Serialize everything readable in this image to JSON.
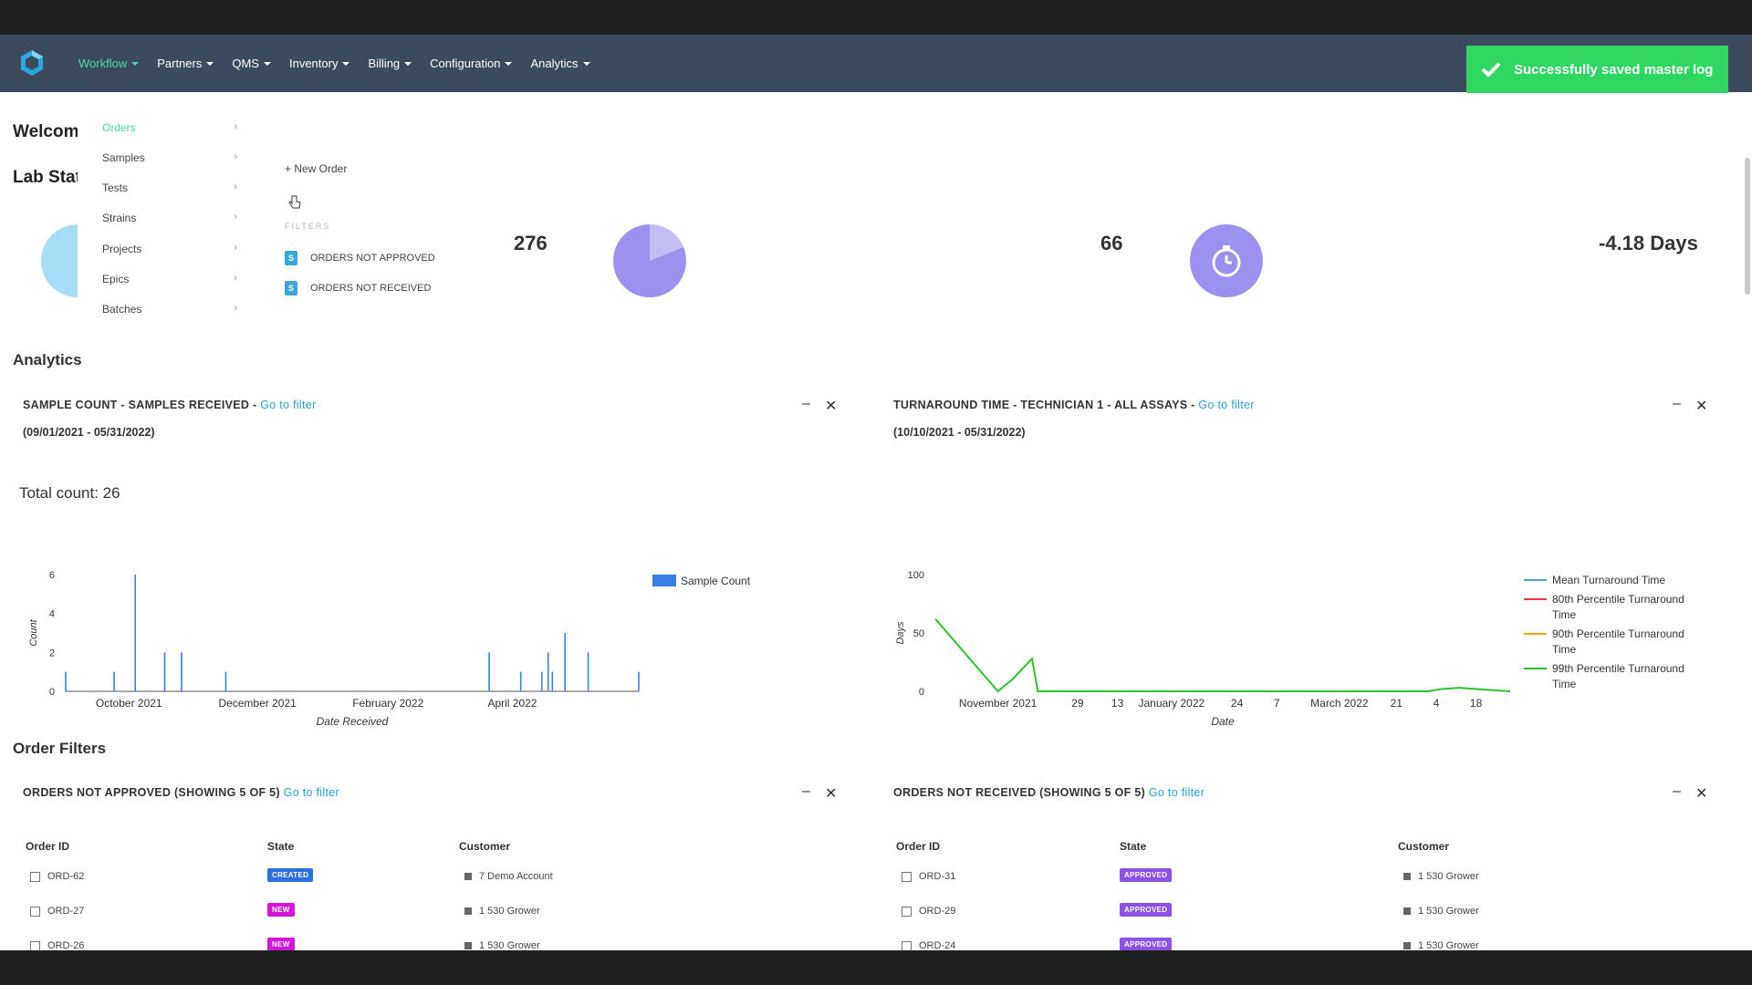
{
  "nav": {
    "items": [
      "Workflow",
      "Partners",
      "QMS",
      "Inventory",
      "Billing",
      "Configuration",
      "Analytics"
    ]
  },
  "toast": {
    "message": "Successfully saved master log"
  },
  "welcome": "Welcome",
  "lab_stats": "Lab Stats",
  "workflow_menu": {
    "items": [
      "Orders",
      "Samples",
      "Tests",
      "Strains",
      "Projects",
      "Epics",
      "Batches"
    ],
    "active": "Orders"
  },
  "orders_submenu": {
    "new_order": "+ New Order",
    "filters_label": "FILTERS",
    "filters": [
      "ORDERS NOT APPROVED",
      "ORDERS NOT RECEIVED"
    ],
    "filter_badge": "S"
  },
  "stats": {
    "value_1": "276",
    "value_2": "66",
    "value_3": "-4.18 Days"
  },
  "analytics": {
    "heading": "Analytics",
    "card1": {
      "title": "SAMPLE COUNT - SAMPLES RECEIVED - ",
      "link": "Go to filter",
      "range": "(09/01/2021 - 05/31/2022)",
      "total": "Total count: 26"
    },
    "card2": {
      "title": "TURNAROUND TIME - TECHNICIAN 1 - ALL ASSAYS - ",
      "link": "Go to filter",
      "range": "(10/10/2021 - 05/31/2022)"
    },
    "minimize": "–",
    "close": "✕"
  },
  "chart_data": [
    {
      "type": "bar",
      "xlabel": "Date Received",
      "ylabel": "Count",
      "ylim": [
        0,
        6
      ],
      "yticks": [
        0,
        2,
        4,
        6
      ],
      "xticks": [
        "October 2021",
        "December 2021",
        "February 2022",
        "April 2022"
      ],
      "legend": "top-right",
      "series": [
        {
          "name": "Sample Count",
          "color": "#3a7ee8",
          "x": [
            "2021-09-01",
            "2021-09-24",
            "2021-10-04",
            "2021-10-18",
            "2021-10-26",
            "2021-11-16",
            "2022-03-21",
            "2022-04-05",
            "2022-04-15",
            "2022-04-18",
            "2022-04-20",
            "2022-04-26",
            "2022-05-07",
            "2022-05-31"
          ],
          "values": [
            1,
            1,
            6,
            2,
            2,
            1,
            2,
            1,
            1,
            2,
            1,
            3,
            2,
            1
          ]
        }
      ]
    },
    {
      "type": "line",
      "xlabel": "Date",
      "ylabel": "Days",
      "ylim": [
        0,
        100
      ],
      "yticks": [
        0,
        50,
        100
      ],
      "xticks": [
        "November 2021",
        "29",
        "13",
        "January 2022",
        "24",
        "7",
        "March 2022",
        "21",
        "4",
        "18"
      ],
      "legend": "right",
      "series": [
        {
          "name": "Mean Turnaround Time",
          "color": "#4aa3e6",
          "x": [],
          "y": []
        },
        {
          "name": "80th Percentile Turnaround Time",
          "color": "#e63a3a",
          "x": [],
          "y": []
        },
        {
          "name": "90th Percentile Turnaround Time",
          "color": "#f2a818",
          "x": [],
          "y": []
        },
        {
          "name": "99th Percentile Turnaround Time",
          "color": "#2fc22f",
          "x": [
            "2021-10-10",
            "2021-11-01",
            "2021-11-06",
            "2021-11-13",
            "2021-11-15",
            "2022-01-01",
            "2022-03-01",
            "2022-04-01",
            "2022-04-06",
            "2022-04-12",
            "2022-04-24",
            "2022-04-30"
          ],
          "y": [
            62,
            0,
            10,
            28,
            0,
            0,
            0,
            0,
            2,
            3,
            1,
            0
          ]
        }
      ]
    }
  ],
  "order_filters": {
    "heading": "Order Filters",
    "table1": {
      "title": "ORDERS NOT APPROVED (SHOWING 5 OF 5) ",
      "link": "Go to filter",
      "headers": [
        "Order ID",
        "State",
        "Customer"
      ],
      "rows": [
        {
          "id": "ORD-62",
          "state": "CREATED",
          "customer": "7  Demo Account"
        },
        {
          "id": "ORD-27",
          "state": "NEW",
          "customer": "1  530 Grower"
        },
        {
          "id": "ORD-26",
          "state": "NEW",
          "customer": "1  530 Grower"
        }
      ]
    },
    "table2": {
      "title": "ORDERS NOT RECEIVED (SHOWING 5 OF 5) ",
      "link": "Go to filter",
      "headers": [
        "Order ID",
        "State",
        "Customer"
      ],
      "rows": [
        {
          "id": "ORD-31",
          "state": "APPROVED",
          "customer": "1  530 Grower"
        },
        {
          "id": "ORD-29",
          "state": "APPROVED",
          "customer": "1  530 Grower"
        },
        {
          "id": "ORD-24",
          "state": "APPROVED",
          "customer": "1  530 Grower"
        }
      ]
    }
  },
  "colors": {
    "accent": "#4dd9a9",
    "topbar": "#3b4a5c",
    "link": "#2ba0d8",
    "toast": "#2fd65f"
  }
}
